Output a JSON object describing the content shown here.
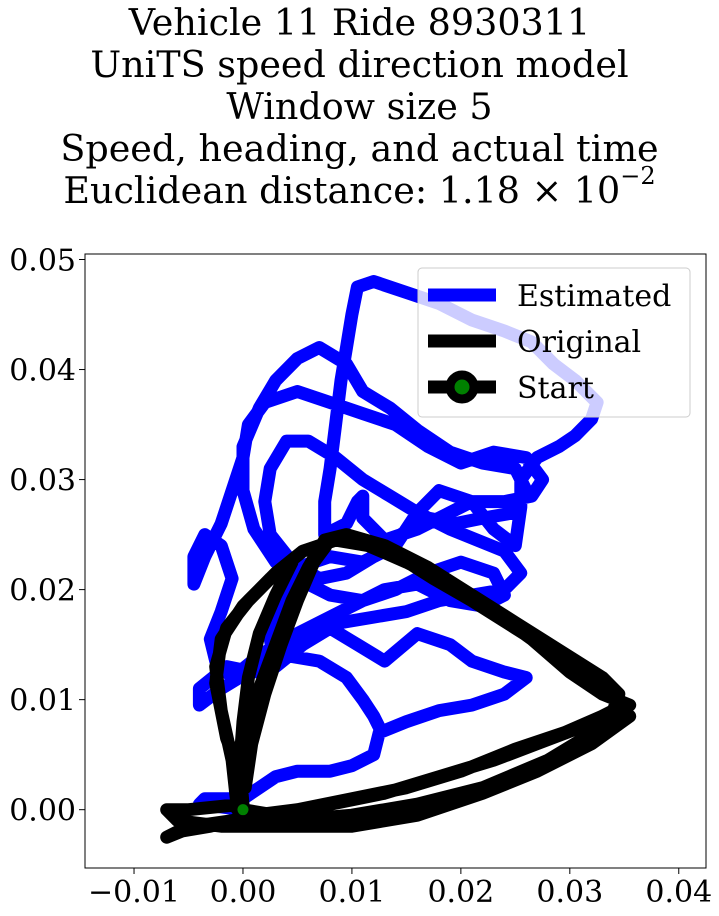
{
  "title": {
    "line1": "Vehicle 11 Ride 8930311",
    "line2": "UniTS speed direction model",
    "line3": "Window size 5",
    "line4": "Speed, heading, and actual time",
    "line5_prefix": "Euclidean distance: 1.18 × 10",
    "line5_exp": "−2"
  },
  "chart_data": {
    "type": "line",
    "xlim": [
      -0.0145,
      0.0425
    ],
    "ylim": [
      -0.0053,
      0.0505
    ],
    "xticks": [
      -0.01,
      0.0,
      0.01,
      0.02,
      0.03,
      0.04
    ],
    "xtick_labels": [
      "−0.01",
      "0.00",
      "0.01",
      "0.02",
      "0.03",
      "0.04"
    ],
    "yticks": [
      0.0,
      0.01,
      0.02,
      0.03,
      0.04,
      0.05
    ],
    "ytick_labels": [
      "0.00",
      "0.01",
      "0.02",
      "0.03",
      "0.04",
      "0.05"
    ],
    "grid": false,
    "legend_position": "top-right",
    "series": [
      {
        "name": "Estimated",
        "color": "#0000ff",
        "points": [
          [
            0.0,
            0.0
          ],
          [
            -0.004,
            0.0005
          ],
          [
            -0.0035,
            0.001
          ],
          [
            0.0,
            0.001
          ],
          [
            0.003,
            0.003
          ],
          [
            0.005,
            0.0035
          ],
          [
            0.008,
            0.0035
          ],
          [
            0.01,
            0.004
          ],
          [
            0.012,
            0.005
          ],
          [
            0.0125,
            0.007
          ],
          [
            0.015,
            0.008
          ],
          [
            0.018,
            0.009
          ],
          [
            0.021,
            0.0095
          ],
          [
            0.024,
            0.0105
          ],
          [
            0.026,
            0.012
          ],
          [
            0.024,
            0.0125
          ],
          [
            0.021,
            0.0135
          ],
          [
            0.019,
            0.015
          ],
          [
            0.016,
            0.016
          ],
          [
            0.013,
            0.0135
          ],
          [
            0.0105,
            0.015
          ],
          [
            0.008,
            0.0165
          ],
          [
            0.0055,
            0.015
          ],
          [
            0.003,
            0.013
          ],
          [
            0.0025,
            0.0155
          ],
          [
            0.0035,
            0.019
          ],
          [
            0.005,
            0.022
          ],
          [
            0.008,
            0.023
          ],
          [
            0.011,
            0.0225
          ],
          [
            0.014,
            0.024
          ],
          [
            0.016,
            0.027
          ],
          [
            0.018,
            0.029
          ],
          [
            0.021,
            0.028
          ],
          [
            0.023,
            0.0255
          ],
          [
            0.025,
            0.024
          ],
          [
            0.0255,
            0.0275
          ],
          [
            0.0255,
            0.03
          ],
          [
            0.027,
            0.032
          ],
          [
            0.029,
            0.033
          ],
          [
            0.0305,
            0.034
          ],
          [
            0.032,
            0.0355
          ],
          [
            0.0325,
            0.037
          ],
          [
            0.0305,
            0.039
          ],
          [
            0.0285,
            0.0405
          ],
          [
            0.0265,
            0.0425
          ],
          [
            0.024,
            0.0435
          ],
          [
            0.021,
            0.0445
          ],
          [
            0.018,
            0.046
          ],
          [
            0.015,
            0.047
          ],
          [
            0.012,
            0.048
          ],
          [
            0.0105,
            0.0475
          ],
          [
            0.01,
            0.045
          ],
          [
            0.0095,
            0.042
          ],
          [
            0.009,
            0.039
          ],
          [
            0.0085,
            0.035
          ],
          [
            0.008,
            0.031
          ],
          [
            0.0075,
            0.028
          ],
          [
            0.0075,
            0.025
          ],
          [
            0.0095,
            0.026
          ],
          [
            0.0105,
            0.028
          ],
          [
            0.011,
            0.0285
          ],
          [
            0.011,
            0.0265
          ],
          [
            0.013,
            0.0245
          ],
          [
            0.016,
            0.0255
          ],
          [
            0.019,
            0.027
          ],
          [
            0.021,
            0.028
          ],
          [
            0.024,
            0.028
          ],
          [
            0.0265,
            0.0285
          ],
          [
            0.0275,
            0.03
          ],
          [
            0.026,
            0.032
          ],
          [
            0.023,
            0.0325
          ],
          [
            0.02,
            0.0315
          ],
          [
            0.017,
            0.033
          ],
          [
            0.014,
            0.035
          ],
          [
            0.011,
            0.036
          ],
          [
            0.008,
            0.037
          ],
          [
            0.005,
            0.038
          ],
          [
            0.002,
            0.037
          ],
          [
            0.0005,
            0.035
          ],
          [
            0.0,
            0.032
          ],
          [
            -0.001,
            0.029
          ],
          [
            -0.002,
            0.026
          ],
          [
            -0.0035,
            0.023
          ],
          [
            -0.0045,
            0.0205
          ],
          [
            -0.0045,
            0.023
          ],
          [
            -0.0035,
            0.025
          ],
          [
            -0.002,
            0.024
          ],
          [
            -0.001,
            0.021
          ],
          [
            -0.002,
            0.018
          ],
          [
            -0.003,
            0.0155
          ],
          [
            -0.0025,
            0.0135
          ],
          [
            -0.001,
            0.012
          ],
          [
            0.0015,
            0.014
          ],
          [
            0.004,
            0.0155
          ],
          [
            0.007,
            0.017
          ],
          [
            0.01,
            0.0185
          ],
          [
            0.013,
            0.02
          ],
          [
            0.016,
            0.0205
          ],
          [
            0.019,
            0.019
          ],
          [
            0.022,
            0.0185
          ],
          [
            0.024,
            0.0195
          ],
          [
            0.023,
            0.0215
          ],
          [
            0.02,
            0.0225
          ],
          [
            0.017,
            0.0215
          ],
          [
            0.014,
            0.02
          ],
          [
            0.011,
            0.019
          ],
          [
            0.008,
            0.0195
          ],
          [
            0.005,
            0.021
          ],
          [
            0.003,
            0.0225
          ],
          [
            0.001,
            0.0255
          ],
          [
            0.0,
            0.029
          ],
          [
            0.0,
            0.033
          ],
          [
            0.0015,
            0.0365
          ],
          [
            0.003,
            0.039
          ],
          [
            0.005,
            0.041
          ],
          [
            0.007,
            0.042
          ],
          [
            0.0095,
            0.0405
          ],
          [
            0.011,
            0.038
          ],
          [
            0.0135,
            0.0365
          ],
          [
            0.016,
            0.0345
          ],
          [
            0.019,
            0.0325
          ],
          [
            0.022,
            0.0315
          ],
          [
            0.025,
            0.031
          ],
          [
            0.026,
            0.029
          ],
          [
            0.025,
            0.027
          ],
          [
            0.022,
            0.0265
          ],
          [
            0.0195,
            0.026
          ],
          [
            0.017,
            0.0265
          ],
          [
            0.0145,
            0.025
          ],
          [
            0.012,
            0.023
          ],
          [
            0.0095,
            0.0215
          ],
          [
            0.007,
            0.021
          ],
          [
            0.0045,
            0.0225
          ],
          [
            0.0025,
            0.025
          ],
          [
            0.002,
            0.028
          ],
          [
            0.0025,
            0.031
          ],
          [
            0.004,
            0.0335
          ],
          [
            0.006,
            0.0335
          ],
          [
            0.0085,
            0.032
          ],
          [
            0.011,
            0.03
          ],
          [
            0.0135,
            0.0285
          ],
          [
            0.016,
            0.027
          ],
          [
            0.019,
            0.0255
          ],
          [
            0.0215,
            0.0245
          ],
          [
            0.024,
            0.0235
          ],
          [
            0.0255,
            0.0215
          ],
          [
            0.024,
            0.02
          ],
          [
            0.021,
            0.0195
          ],
          [
            0.018,
            0.019
          ],
          [
            0.015,
            0.018
          ],
          [
            0.012,
            0.0175
          ],
          [
            0.009,
            0.017
          ],
          [
            0.006,
            0.016
          ],
          [
            0.003,
            0.0145
          ],
          [
            0.0005,
            0.0125
          ],
          [
            -0.002,
            0.011
          ],
          [
            -0.004,
            0.0095
          ],
          [
            -0.004,
            0.011
          ],
          [
            -0.0015,
            0.013
          ],
          [
            0.001,
            0.0125
          ],
          [
            0.004,
            0.014
          ],
          [
            0.007,
            0.0135
          ],
          [
            0.0095,
            0.012
          ],
          [
            0.011,
            0.01
          ],
          [
            0.012,
            0.0085
          ],
          [
            0.0125,
            0.0075
          ]
        ]
      },
      {
        "name": "Original",
        "color": "#000000",
        "points": [
          [
            0.0,
            0.0
          ],
          [
            0.003,
            -0.0005
          ],
          [
            0.008,
            0.0005
          ],
          [
            0.013,
            0.0015
          ],
          [
            0.018,
            0.003
          ],
          [
            0.023,
            0.0045
          ],
          [
            0.027,
            0.006
          ],
          [
            0.031,
            0.0075
          ],
          [
            0.034,
            0.009
          ],
          [
            0.0345,
            0.0105
          ],
          [
            0.033,
            0.012
          ],
          [
            0.029,
            0.0145
          ],
          [
            0.025,
            0.017
          ],
          [
            0.021,
            0.0195
          ],
          [
            0.017,
            0.022
          ],
          [
            0.013,
            0.024
          ],
          [
            0.0095,
            0.025
          ],
          [
            0.0075,
            0.0245
          ],
          [
            0.006,
            0.022
          ],
          [
            0.0045,
            0.019
          ],
          [
            0.003,
            0.015
          ],
          [
            0.0015,
            0.011
          ],
          [
            0.0005,
            0.007
          ],
          [
            0.0,
            0.003
          ],
          [
            -0.0005,
            0.0
          ],
          [
            -0.001,
            0.0045
          ],
          [
            -0.002,
            0.009
          ],
          [
            -0.0025,
            0.013
          ],
          [
            -0.0015,
            0.0165
          ],
          [
            0.0005,
            0.019
          ],
          [
            0.003,
            0.0215
          ],
          [
            0.0055,
            0.0235
          ],
          [
            0.0085,
            0.0245
          ],
          [
            0.0115,
            0.024
          ],
          [
            0.015,
            0.0225
          ],
          [
            0.019,
            0.0205
          ],
          [
            0.023,
            0.018
          ],
          [
            0.0265,
            0.0155
          ],
          [
            0.03,
            0.0125
          ],
          [
            0.033,
            0.0105
          ],
          [
            0.0355,
            0.0095
          ],
          [
            0.033,
            0.0085
          ],
          [
            0.0295,
            0.007
          ],
          [
            0.025,
            0.0055
          ],
          [
            0.02,
            0.0035
          ],
          [
            0.015,
            0.002
          ],
          [
            0.01,
            0.001
          ],
          [
            0.005,
            0.0
          ],
          [
            0.001,
            -0.0005
          ],
          [
            -0.003,
            -0.0015
          ],
          [
            -0.006,
            -0.002
          ],
          [
            -0.007,
            -0.0025
          ],
          [
            -0.0045,
            -0.0015
          ],
          [
            -0.001,
            -0.001
          ],
          [
            0.004,
            -0.001
          ],
          [
            0.01,
            -0.0005
          ],
          [
            0.016,
            0.0005
          ],
          [
            0.022,
            0.002
          ],
          [
            0.028,
            0.0045
          ],
          [
            0.033,
            0.0075
          ],
          [
            0.035,
            0.0095
          ],
          [
            0.033,
            0.0115
          ],
          [
            0.029,
            0.014
          ],
          [
            0.025,
            0.0165
          ],
          [
            0.021,
            0.019
          ],
          [
            0.0175,
            0.021
          ],
          [
            0.0135,
            0.0235
          ],
          [
            0.01,
            0.0245
          ],
          [
            0.008,
            0.0245
          ],
          [
            0.0065,
            0.0225
          ],
          [
            0.005,
            0.019
          ],
          [
            0.0035,
            0.015
          ],
          [
            0.002,
            0.0105
          ],
          [
            0.0008,
            0.006
          ],
          [
            0.0002,
            0.002
          ],
          [
            -0.0015,
            0.0065
          ],
          [
            -0.0025,
            0.0115
          ],
          [
            -0.002,
            0.0155
          ],
          [
            0.0,
            0.0185
          ],
          [
            0.0025,
            0.021
          ],
          [
            0.0045,
            0.0225
          ],
          [
            0.003,
            0.0195
          ],
          [
            0.0015,
            0.016
          ],
          [
            0.0005,
            0.012
          ],
          [
            0.0,
            0.008
          ],
          [
            -0.0003,
            0.004
          ],
          [
            0.0,
            0.0005
          ],
          [
            -0.005,
            0.0
          ],
          [
            -0.007,
            0.0
          ],
          [
            -0.006,
            -0.001
          ],
          [
            -0.002,
            -0.0015
          ],
          [
            0.004,
            -0.0015
          ],
          [
            0.01,
            -0.0015
          ],
          [
            0.016,
            -0.0005
          ],
          [
            0.022,
            0.0015
          ],
          [
            0.027,
            0.0035
          ],
          [
            0.032,
            0.006
          ],
          [
            0.0355,
            0.0085
          ]
        ]
      },
      {
        "name": "Start",
        "color": "#000000",
        "marker_color": "#008000",
        "points": [
          [
            0.0,
            0.0
          ]
        ]
      }
    ]
  }
}
